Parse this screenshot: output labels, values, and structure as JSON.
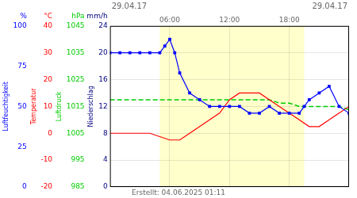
{
  "chart_data": {
    "type": "line",
    "title": "29.04.17",
    "annotations": [
      "29.04.17"
    ],
    "subtitle": "Erstellt: 04.06.2025 01:11",
    "grid": true,
    "xlim": [
      0,
      24
    ],
    "xticks": [
      {
        "value": 6.0,
        "label": "06:00"
      },
      {
        "value": 12.0,
        "label": "12:00"
      },
      {
        "value": 18.0,
        "label": "18:00"
      }
    ],
    "ylim": [
      0,
      24
    ],
    "yticks": [
      0,
      4,
      8,
      12,
      16,
      20,
      24
    ],
    "ylabel": "Niederschlag",
    "yunit": "mm/h",
    "ycolor": "#000080",
    "y2lim": [
      0,
      100
    ],
    "y2ticks": [
      0,
      25,
      50,
      75,
      100
    ],
    "y2label": "Luftfeuchtigkeit",
    "y2unit": "%",
    "y2color": "#0000ff",
    "y3lim": [
      -20,
      40
    ],
    "y3ticks": [
      -20,
      -10,
      0,
      10,
      20,
      30,
      40
    ],
    "y3label": "Temperatur",
    "y3unit": "°C",
    "y3color": "#ff0000",
    "y4lim": [
      985,
      1045
    ],
    "y4ticks": [
      985,
      995,
      1005,
      1015,
      1025,
      1035,
      1045
    ],
    "y4label": "Luftdruck",
    "y4unit": "hPa",
    "y4color": "#00cc00",
    "day_regions": [
      {
        "x": [
          5.0,
          19.5
        ],
        "color": "#ffffcc"
      }
    ],
    "series": [
      {
        "color": "#0000ff",
        "marker": "square",
        "line_style": "solid",
        "x": [
          0,
          1,
          2,
          3,
          4,
          5,
          5.5,
          6,
          6.5,
          7,
          8,
          9,
          10,
          11,
          12,
          13,
          14,
          15,
          16,
          17,
          18,
          19,
          19.5,
          20,
          21,
          22,
          23,
          24
        ],
        "values": [
          20,
          20,
          20,
          20,
          20,
          20,
          21,
          22,
          20,
          17,
          14,
          13,
          12,
          12,
          12,
          12,
          11,
          11,
          12,
          11,
          11,
          11,
          12,
          13,
          14,
          15,
          12,
          11
        ]
      },
      {
        "color": "#ff0000",
        "marker": "none",
        "line_style": "solid",
        "x": [
          0,
          1,
          2,
          3,
          4,
          5,
          6,
          7,
          8,
          9,
          10,
          11,
          12,
          13,
          14,
          15,
          16,
          17,
          18,
          19,
          20,
          21,
          22,
          23,
          24
        ],
        "values": [
          8,
          8,
          8,
          8,
          8,
          7.5,
          7,
          7,
          8,
          9,
          10,
          11,
          13,
          14,
          14,
          14,
          13,
          12,
          11,
          10,
          9,
          9,
          10,
          11,
          12
        ]
      },
      {
        "color": "#00cc00",
        "marker": "none",
        "line_style": "dashed",
        "x": [
          0,
          1,
          2,
          3,
          4,
          5,
          6,
          7,
          8,
          9,
          10,
          11,
          12,
          13,
          14,
          15,
          16,
          17,
          18,
          19,
          20,
          21,
          22,
          23,
          24
        ],
        "values": [
          13,
          13,
          13,
          13,
          13,
          13,
          13,
          13,
          13,
          13,
          13,
          13,
          13,
          13,
          13,
          13,
          13,
          12.5,
          12.5,
          12,
          12,
          12,
          12,
          12,
          11.5
        ]
      }
    ]
  }
}
